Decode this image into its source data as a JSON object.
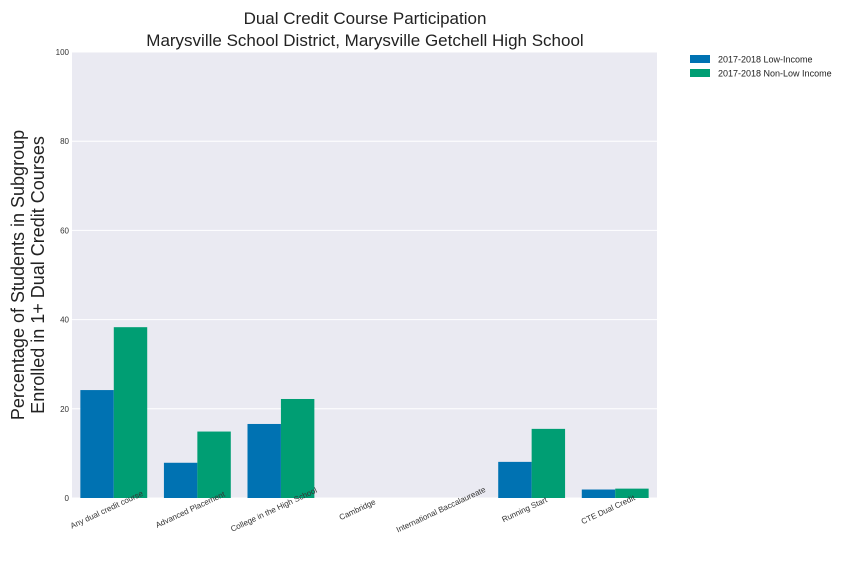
{
  "chart_data": {
    "type": "bar",
    "title": [
      "Dual Credit Course Participation",
      "Marysville School District, Marysville Getchell High School"
    ],
    "ylabel": [
      "Percentage of Students in Subgroup",
      "Enrolled in 1+ Dual Credit Courses"
    ],
    "xlabel": "",
    "categories": [
      "Any dual credit course",
      "Advanced Placement",
      "College in the High School",
      "Cambridge",
      "International Baccalaureate",
      "Running Start",
      "CTE Dual Credit"
    ],
    "series": [
      {
        "name": "2017-2018 Low-Income",
        "color": "#0072b2",
        "values": [
          24.2,
          7.9,
          16.6,
          0,
          0,
          8.1,
          1.9
        ]
      },
      {
        "name": "2017-2018 Non-Low Income",
        "color": "#009e73",
        "values": [
          38.3,
          14.9,
          22.2,
          0,
          0,
          15.5,
          2.1
        ]
      }
    ],
    "ylim": [
      0,
      100
    ],
    "yticks": [
      0,
      20,
      40,
      60,
      80,
      100
    ],
    "grid": true,
    "legend": "outside-top-right",
    "background": "#eaeaf2"
  }
}
